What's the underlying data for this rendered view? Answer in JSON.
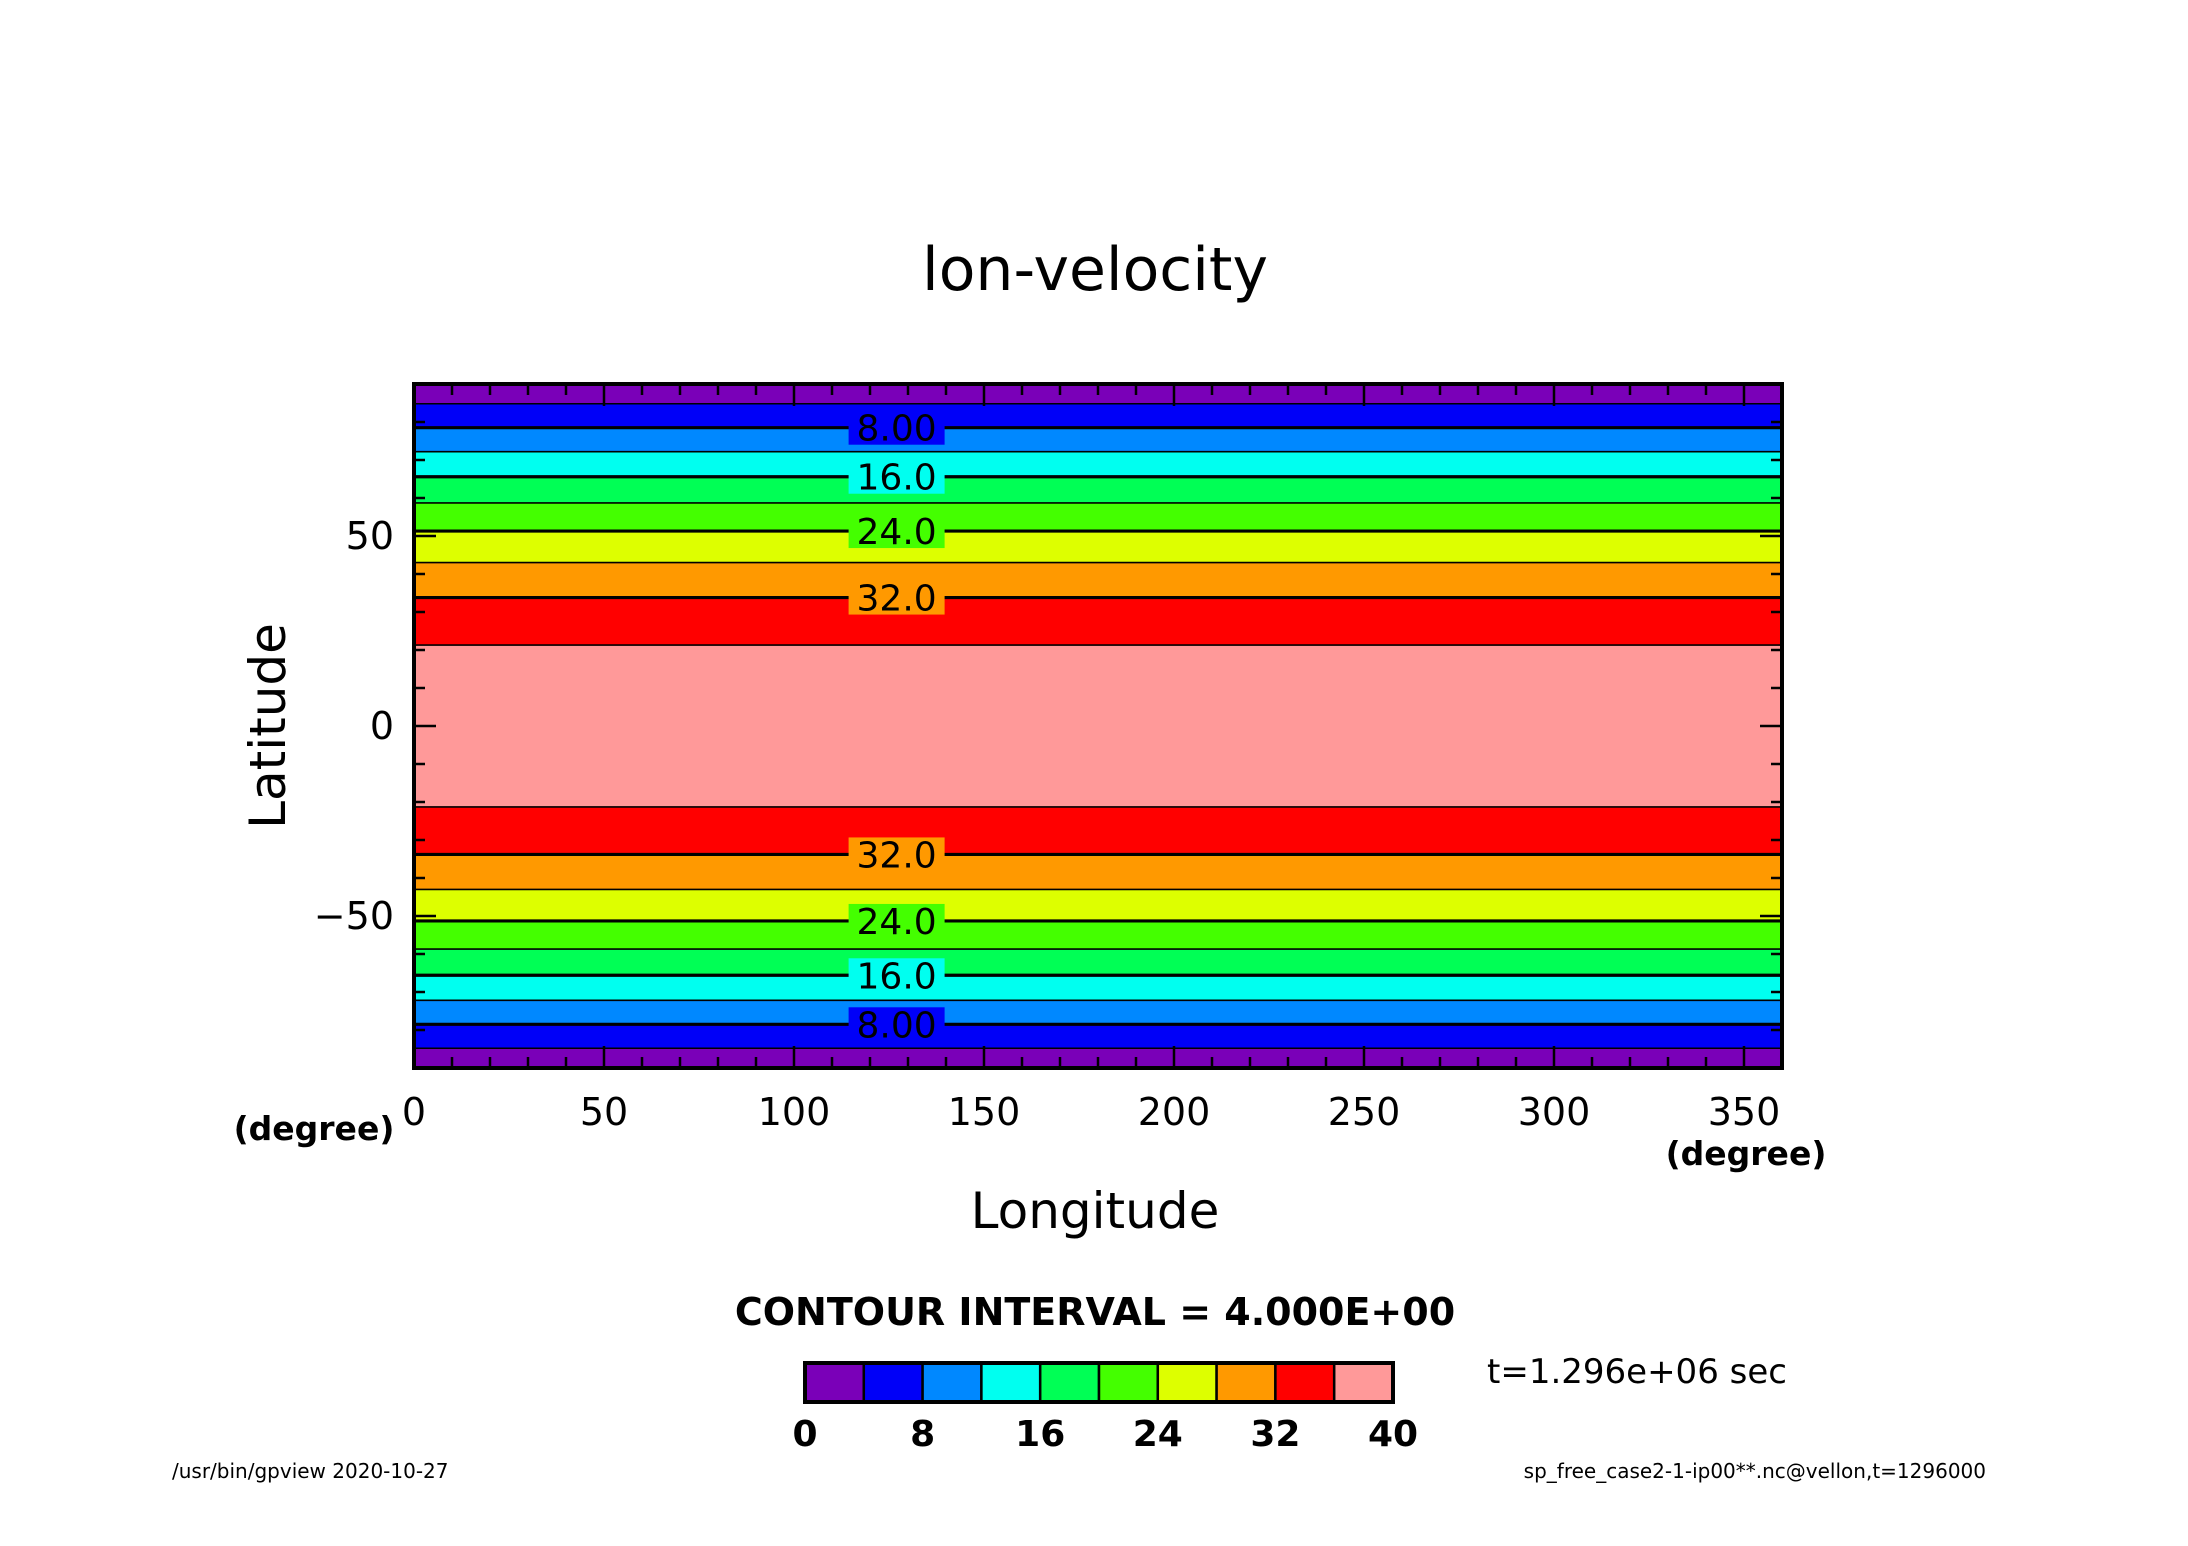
{
  "chart_data": {
    "type": "heatmap",
    "title": "lon-velocity",
    "xlabel": "Longitude",
    "ylabel": "Latitude",
    "xunit": "(degree)",
    "yunit": "(degree)",
    "xlim": [
      0,
      360
    ],
    "ylim": [
      -90,
      90
    ],
    "xticks": [
      0,
      50,
      100,
      150,
      200,
      250,
      300,
      350
    ],
    "yticks": [
      -50,
      0,
      50
    ],
    "bands": [
      {
        "lat": [
          -90,
          -84.8
        ],
        "level": 0
      },
      {
        "lat": [
          -84.8,
          -78.5
        ],
        "level": 1
      },
      {
        "lat": [
          -78.5,
          -72.2
        ],
        "level": 2
      },
      {
        "lat": [
          -72.2,
          -65.6
        ],
        "level": 3
      },
      {
        "lat": [
          -65.6,
          -58.7
        ],
        "level": 4
      },
      {
        "lat": [
          -58.7,
          -51.3
        ],
        "level": 5
      },
      {
        "lat": [
          -51.3,
          -43.0
        ],
        "level": 6
      },
      {
        "lat": [
          -43.0,
          -33.8
        ],
        "level": 7
      },
      {
        "lat": [
          -33.8,
          -21.3
        ],
        "level": 8
      },
      {
        "lat": [
          -21.3,
          21.3
        ],
        "level": 9
      },
      {
        "lat": [
          21.3,
          33.8
        ],
        "level": 8
      },
      {
        "lat": [
          33.8,
          43.0
        ],
        "level": 7
      },
      {
        "lat": [
          43.0,
          51.3
        ],
        "level": 6
      },
      {
        "lat": [
          51.3,
          58.7
        ],
        "level": 5
      },
      {
        "lat": [
          58.7,
          65.6
        ],
        "level": 4
      },
      {
        "lat": [
          65.6,
          72.2
        ],
        "level": 3
      },
      {
        "lat": [
          72.2,
          78.5
        ],
        "level": 2
      },
      {
        "lat": [
          78.5,
          84.8
        ],
        "level": 1
      },
      {
        "lat": [
          84.8,
          90
        ],
        "level": 0
      }
    ],
    "contour_labels": [
      {
        "lat": 78.5,
        "text": "8.00"
      },
      {
        "lat": 65.6,
        "text": "16.0"
      },
      {
        "lat": 51.3,
        "text": "24.0"
      },
      {
        "lat": 33.8,
        "text": "32.0"
      },
      {
        "lat": -33.8,
        "text": "32.0"
      },
      {
        "lat": -51.3,
        "text": "24.0"
      },
      {
        "lat": -65.6,
        "text": "16.0"
      },
      {
        "lat": -78.5,
        "text": "8.00"
      }
    ],
    "contour_label_lon": 127,
    "colorbar": {
      "colors": [
        "#7a00b8",
        "#0000f8",
        "#0088ff",
        "#00fff0",
        "#00ff55",
        "#44ff00",
        "#ddff00",
        "#ff9900",
        "#ff0000",
        "#ff9999"
      ],
      "labels": [
        "0",
        "8",
        "16",
        "24",
        "32",
        "40"
      ]
    },
    "contour_interval_text": "CONTOUR INTERVAL = 4.000E+00",
    "time_text": "t=1.296e+06 sec"
  },
  "footer": {
    "left": "/usr/bin/gpview   2020-10-27",
    "right": "sp_free_case2-1-ip00**.nc@vellon,t=1296000"
  }
}
